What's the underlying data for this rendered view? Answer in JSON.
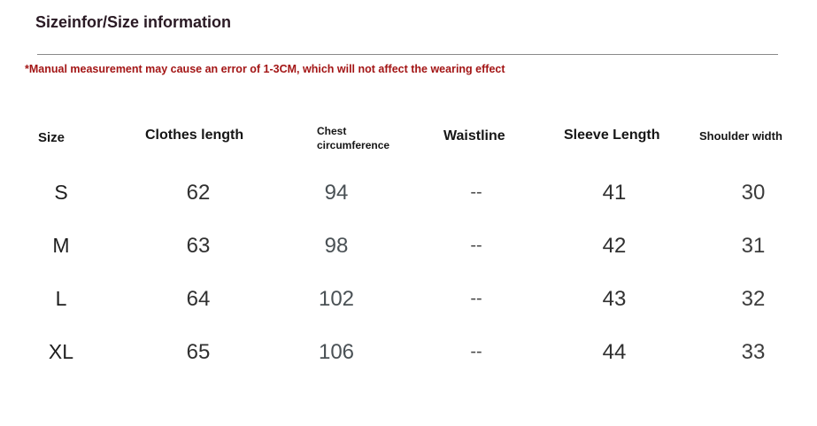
{
  "title": "Sizeinfor/Size information",
  "note": "*Manual measurement may cause an error of 1-3CM, which will not affect the wearing effect",
  "colors": {
    "note": "#a31515",
    "title": "#2a1a24",
    "rule": "#8a8a8a"
  },
  "headers": {
    "size": "Size",
    "clothes_length": "Clothes length",
    "chest_line1": "Chest",
    "chest_line2": "circumference",
    "waistline": "Waistline",
    "sleeve_length": "Sleeve Length",
    "shoulder_width": "Shoulder width"
  },
  "rows": [
    {
      "size": "S",
      "clothes_length": "62",
      "chest": "94",
      "waistline": "--",
      "sleeve_length": "41",
      "shoulder_width": "30"
    },
    {
      "size": "M",
      "clothes_length": "63",
      "chest": "98",
      "waistline": "--",
      "sleeve_length": "42",
      "shoulder_width": "31"
    },
    {
      "size": "L",
      "clothes_length": "64",
      "chest": "102",
      "waistline": "--",
      "sleeve_length": "43",
      "shoulder_width": "32"
    },
    {
      "size": "XL",
      "clothes_length": "65",
      "chest": "106",
      "waistline": "--",
      "sleeve_length": "44",
      "shoulder_width": "33"
    }
  ]
}
